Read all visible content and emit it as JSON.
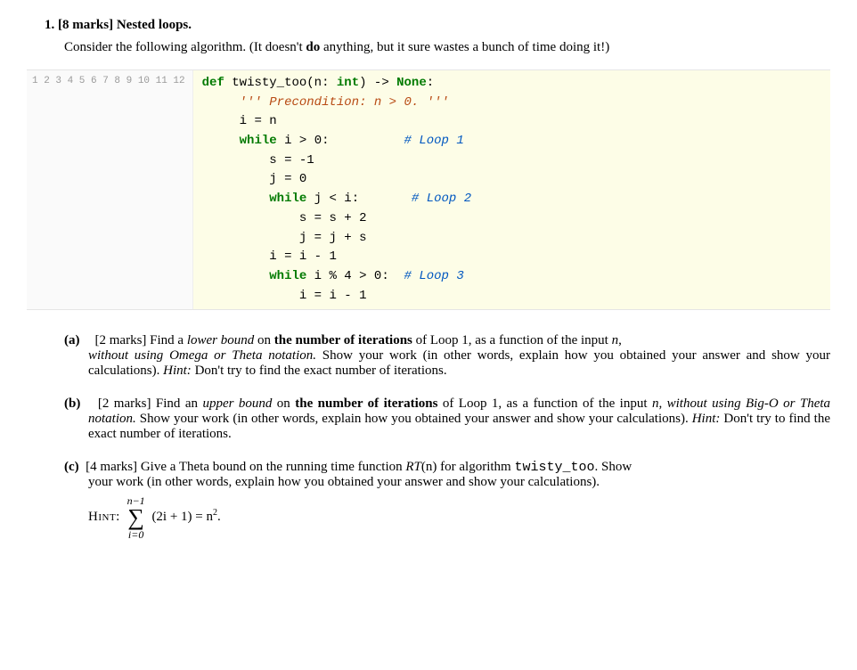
{
  "question": {
    "number": "1.",
    "marks": "[8 marks]",
    "title": "Nested loops.",
    "intro_a": "Consider the following algorithm. (It doesn't ",
    "intro_do": "do",
    "intro_b": " anything, but it sure wastes a bunch of time doing it!)"
  },
  "code": {
    "line_count": 12,
    "background": "#fdfde7",
    "gutter_bg": "#fafafa",
    "gutter_color": "#9a9a9a",
    "l1_def": "def",
    "l1_fn": " twisty_too",
    "l1_paren": "(n: ",
    "l1_type": "int",
    "l1_arrow": ") -> ",
    "l1_none": "None",
    "l1_colon": ":",
    "l2_str": "''' Precondition: n > 0. '''",
    "l3": "i = n",
    "l4_while": "while",
    "l4_cond": " i > ",
    "l4_zero": "0",
    "l4_colon": ":",
    "l4_cmt": "# Loop 1",
    "l5": "s = -",
    "l5_num": "1",
    "l6": "j = ",
    "l6_num": "0",
    "l7_while": "while",
    "l7_cond": " j < i:",
    "l7_cmt": "# Loop 2",
    "l8": "s = s + ",
    "l8_num": "2",
    "l9": "j = j + s",
    "l10": "i = i - ",
    "l10_num": "1",
    "l11_while": "while",
    "l11_cond": " i % ",
    "l11_four": "4",
    "l11_gt": " > ",
    "l11_zero": "0",
    "l11_colon": ":",
    "l11_cmt": "# Loop 3",
    "l12": "i = i - ",
    "l12_num": "1"
  },
  "parts": {
    "a": {
      "label": "(a)",
      "marks": "[2 marks]",
      "body1": " Find a ",
      "lower": "lower bound",
      "body2": " on ",
      "bold": "the number of iterations",
      "body3": " of Loop 1, as a function of the input ",
      "n": "n",
      "body4": ",",
      "cont1": "without using Omega or Theta notation.",
      "cont2": " Show your work (in other words, explain how you obtained your answer and show your calculations).  ",
      "hint_i": "Hint:",
      "hint_t": " Don't try to find the exact number of iterations."
    },
    "b": {
      "label": "(b)",
      "marks": "[2 marks]",
      "body1": " Find an ",
      "upper": "upper bound",
      "body2": " on ",
      "bold": "the number of iterations",
      "body3": " of Loop 1, as a function of the input ",
      "n": "n",
      "body4": ", ",
      "cont1": "without using Big-O or Theta notation.",
      "cont2": " Show your work (in other words, explain how you obtained your answer and show your calculations).  ",
      "hint_i": "Hint:",
      "hint_t": " Don't try to find the exact number of iterations."
    },
    "c": {
      "label": "(c)",
      "marks": "[4 marks]",
      "body1": " Give a Theta bound on the running time function ",
      "rt": "RT",
      "paren_n": "(n)",
      "body2": " for algorithm ",
      "fn": "twisty_too",
      "body3": ". Show",
      "cont": "your work (in other words, explain how you obtained your answer and show your calculations).",
      "hint_label": "Hint:",
      "sum_upper": "n−1",
      "sum_lower": "i=0",
      "sum_body": "(2i + 1) = n",
      "sum_sq": "2",
      "sum_end": "."
    }
  }
}
